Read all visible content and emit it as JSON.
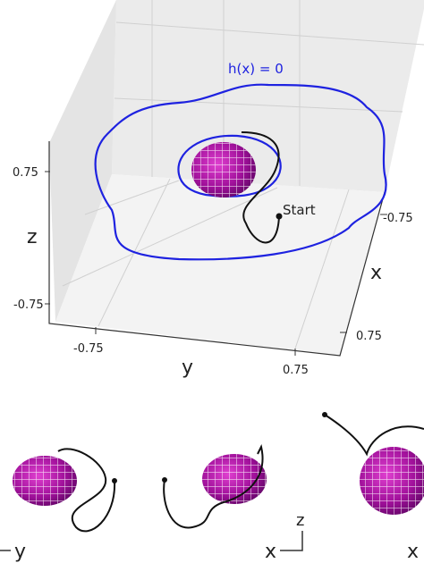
{
  "main_plot": {
    "level_set_label": "h(x) = 0",
    "start_label": "Start",
    "axes": {
      "x": {
        "label": "x",
        "ticks": [
          "-0.75",
          "0.75"
        ]
      },
      "y": {
        "label": "y",
        "ticks": [
          "-0.75",
          "0.75"
        ]
      },
      "z": {
        "label": "z",
        "ticks": [
          "0.75",
          "-0.75"
        ]
      }
    }
  },
  "insets": [
    {
      "axis_labels": [
        "y"
      ]
    },
    {
      "axis_labels": [
        "z",
        "x"
      ]
    },
    {
      "axis_labels": [
        "x"
      ]
    }
  ]
}
